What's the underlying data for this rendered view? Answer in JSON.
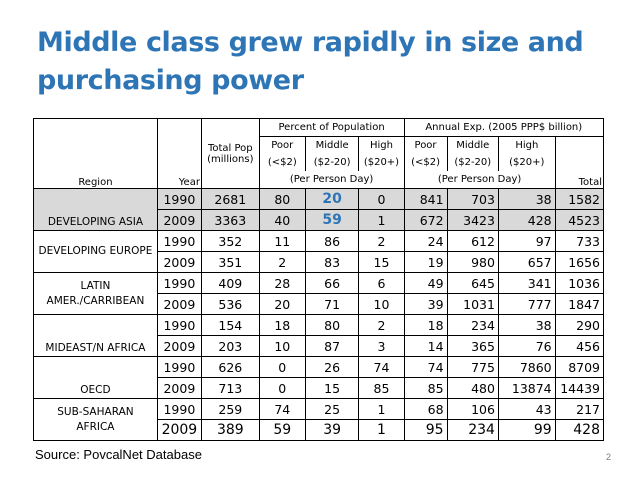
{
  "slide": {
    "title": "Middle class grew rapidly in size and purchasing power",
    "source": "Source:  PovcalNet Database",
    "page_number": "2"
  },
  "table": {
    "header": {
      "percent_group": "Percent of Population",
      "annual_group": "Annual Exp. (2005 PPP$ billion)",
      "region": "Region",
      "year": "Year",
      "total_pop": "Total Pop",
      "total_pop_unit": "(millions)",
      "poor": "Poor",
      "poor_range": "(<$2)",
      "middle": "Middle",
      "middle_range": "($2-20)",
      "high": "High",
      "high_range": "($20+)",
      "per_person_day": "(Per Person Day)",
      "total": "Total"
    },
    "regions": [
      {
        "name": "DEVELOPING ASIA",
        "rows": [
          {
            "year": "1990",
            "pop": "2681",
            "poor": "80",
            "middle": "20",
            "high": "0",
            "exp_poor": "841",
            "exp_middle": "703",
            "exp_high": "38",
            "exp_total": "1582"
          },
          {
            "year": "2009",
            "pop": "3363",
            "poor": "40",
            "middle": "59",
            "high": "1",
            "exp_poor": "672",
            "exp_middle": "3423",
            "exp_high": "428",
            "exp_total": "4523"
          }
        ]
      },
      {
        "name": "DEVELOPING EUROPE",
        "rows": [
          {
            "year": "1990",
            "pop": "352",
            "poor": "11",
            "middle": "86",
            "high": "2",
            "exp_poor": "24",
            "exp_middle": "612",
            "exp_high": "97",
            "exp_total": "733"
          },
          {
            "year": "2009",
            "pop": "351",
            "poor": "2",
            "middle": "83",
            "high": "15",
            "exp_poor": "19",
            "exp_middle": "980",
            "exp_high": "657",
            "exp_total": "1656"
          }
        ]
      },
      {
        "name": "LATIN AMER./CARRIBEAN",
        "rows": [
          {
            "year": "1990",
            "pop": "409",
            "poor": "28",
            "middle": "66",
            "high": "6",
            "exp_poor": "49",
            "exp_middle": "645",
            "exp_high": "341",
            "exp_total": "1036"
          },
          {
            "year": "2009",
            "pop": "536",
            "poor": "20",
            "middle": "71",
            "high": "10",
            "exp_poor": "39",
            "exp_middle": "1031",
            "exp_high": "777",
            "exp_total": "1847"
          }
        ]
      },
      {
        "name": "MIDEAST/N AFRICA",
        "rows": [
          {
            "year": "1990",
            "pop": "154",
            "poor": "18",
            "middle": "80",
            "high": "2",
            "exp_poor": "18",
            "exp_middle": "234",
            "exp_high": "38",
            "exp_total": "290"
          },
          {
            "year": "2009",
            "pop": "203",
            "poor": "10",
            "middle": "87",
            "high": "3",
            "exp_poor": "14",
            "exp_middle": "365",
            "exp_high": "76",
            "exp_total": "456"
          }
        ]
      },
      {
        "name": "OECD",
        "rows": [
          {
            "year": "1990",
            "pop": "626",
            "poor": "0",
            "middle": "26",
            "high": "74",
            "exp_poor": "74",
            "exp_middle": "775",
            "exp_high": "7860",
            "exp_total": "8709"
          },
          {
            "year": "2009",
            "pop": "713",
            "poor": "0",
            "middle": "15",
            "high": "85",
            "exp_poor": "85",
            "exp_middle": "480",
            "exp_high": "13874",
            "exp_total": "14439"
          }
        ]
      },
      {
        "name": "SUB-SAHARAN AFRICA",
        "rows": [
          {
            "year": "1990",
            "pop": "259",
            "poor": "74",
            "middle": "25",
            "high": "1",
            "exp_poor": "68",
            "exp_middle": "106",
            "exp_high": "43",
            "exp_total": "217"
          },
          {
            "year": "2009",
            "pop": "389",
            "poor": "59",
            "middle": "39",
            "high": "1",
            "exp_poor": "95",
            "exp_middle": "234",
            "exp_high": "99",
            "exp_total": "428"
          }
        ]
      }
    ],
    "highlight_color": "#2e75b6",
    "shade_color": "#d9d9d9"
  }
}
